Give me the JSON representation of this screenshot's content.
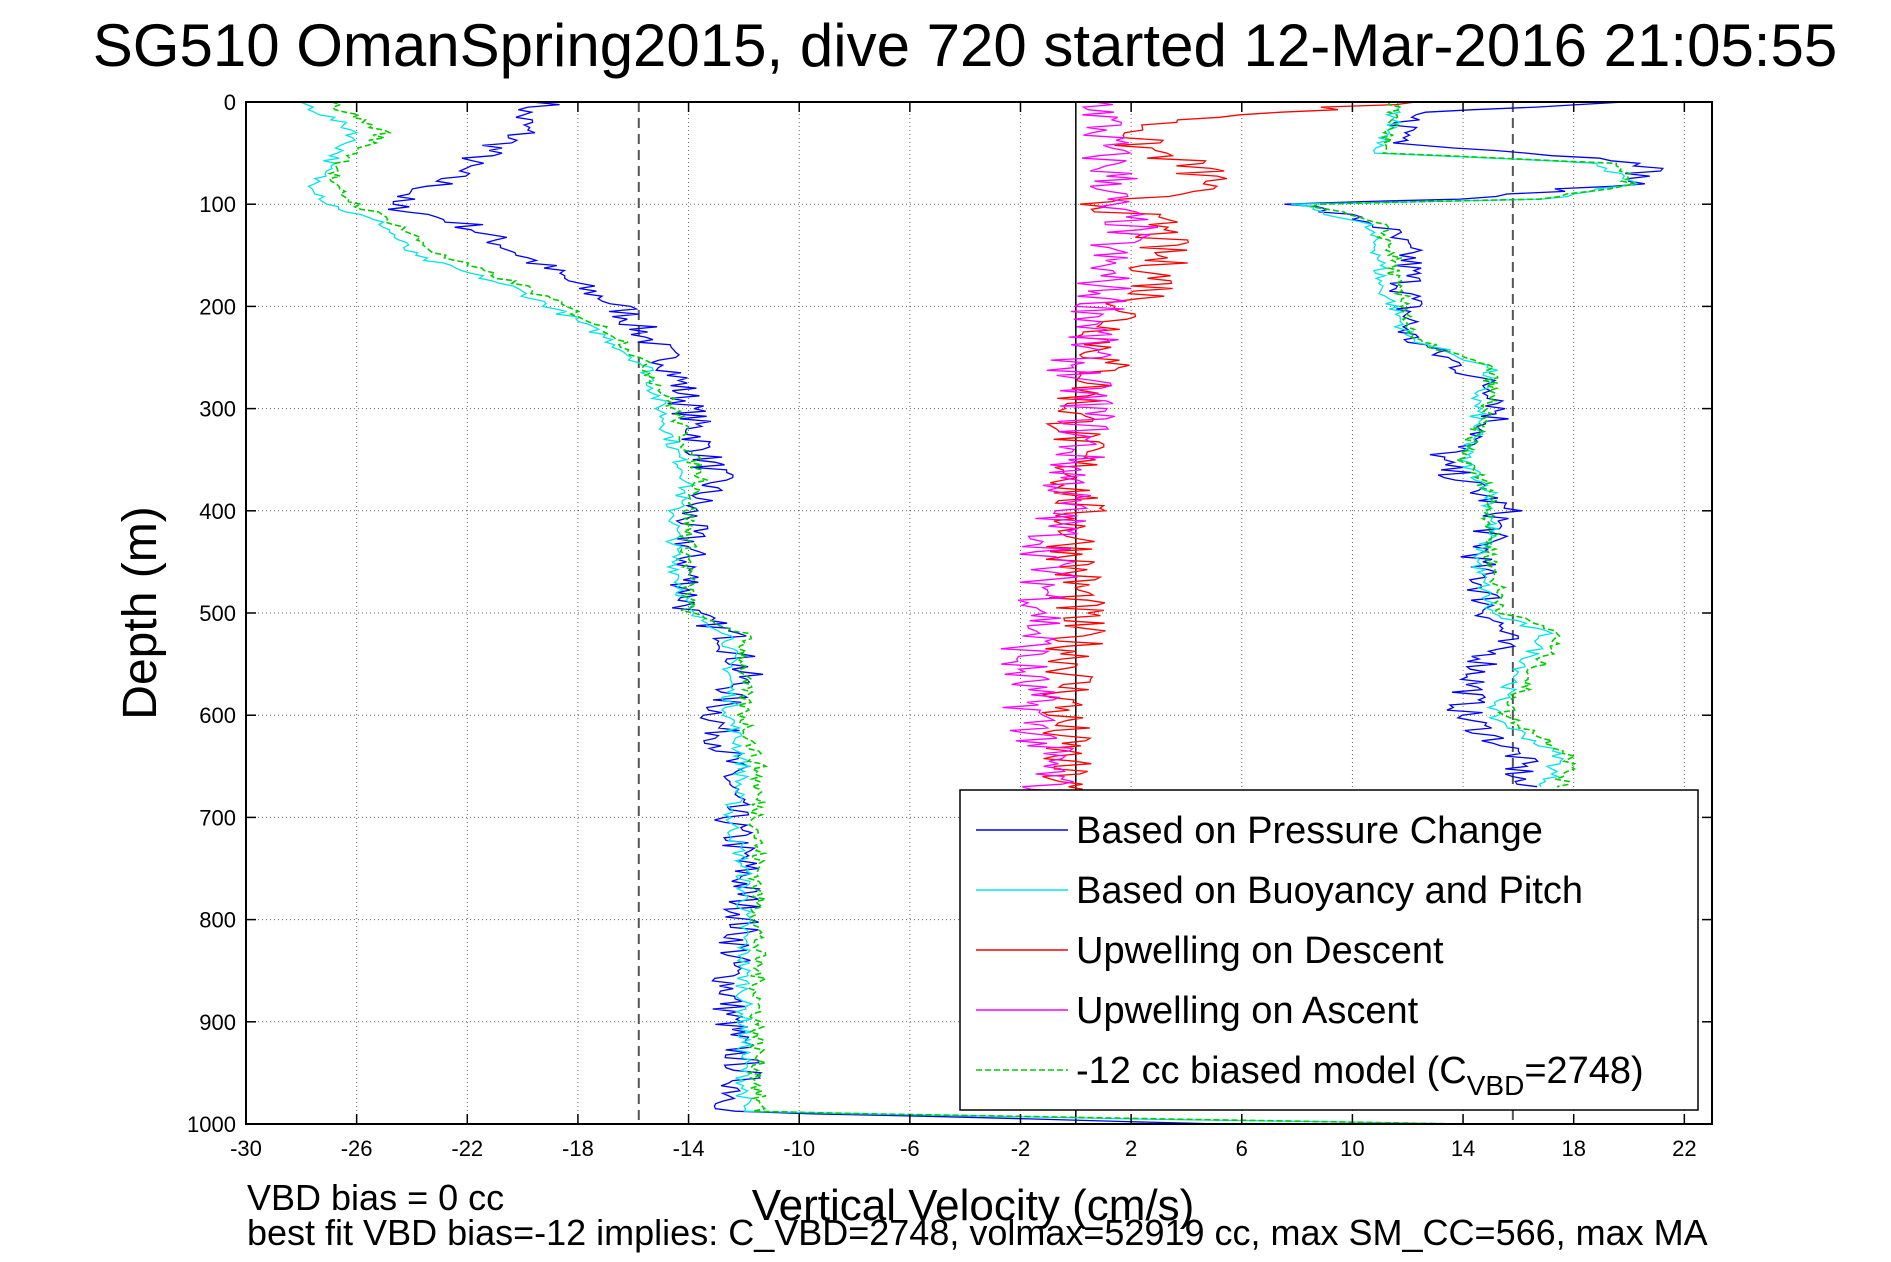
{
  "chart_data": {
    "type": "line",
    "title": "SG510 OmanSpring2015, dive 720 started 12-Mar-2016 21:05:55",
    "xlabel": "Vertical Velocity (cm/s)",
    "ylabel": "Depth (m)",
    "xlim": [
      -30,
      23
    ],
    "ylim": [
      1000,
      0
    ],
    "y_reversed": true,
    "x_ticks": [
      -30,
      -26,
      -22,
      -18,
      -14,
      -10,
      -6,
      -2,
      2,
      6,
      10,
      14,
      18,
      22
    ],
    "y_ticks": [
      0,
      100,
      200,
      300,
      400,
      500,
      600,
      700,
      800,
      900,
      1000
    ],
    "grid": true,
    "legend_position": "lower-right",
    "reference_lines": {
      "dashed_x": [
        -15.8,
        15.8
      ],
      "solid_x": [
        0
      ]
    },
    "notes": [
      "VBD bias = 0 cc",
      "best fit VBD bias=-12 implies: C_VBD=2748, volmax=52919 cc, max SM_CC=566, max MA"
    ],
    "legend": [
      {
        "label": "Based on Pressure Change"
      },
      {
        "label": "Based on Buoyancy and Pitch"
      },
      {
        "label": "Upwelling on Descent"
      },
      {
        "label": "Upwelling on Ascent"
      },
      {
        "label": "-12 cc biased model (C",
        "sub": "VBD",
        "suffix": "=2748)"
      }
    ],
    "series": [
      {
        "name": "Based on Pressure Change",
        "color": "#0000ff",
        "style": "solid",
        "descent": [
          [
            0,
            -19
          ],
          [
            10,
            -20
          ],
          [
            30,
            -20
          ],
          [
            60,
            -22
          ],
          [
            80,
            -23
          ],
          [
            100,
            -25
          ],
          [
            120,
            -22
          ],
          [
            150,
            -20
          ],
          [
            180,
            -18
          ],
          [
            200,
            -16.5
          ],
          [
            230,
            -15.5
          ],
          [
            260,
            -14.5
          ],
          [
            300,
            -14
          ],
          [
            340,
            -13.5
          ],
          [
            370,
            -13
          ],
          [
            400,
            -14
          ],
          [
            450,
            -14
          ],
          [
            500,
            -14
          ],
          [
            520,
            -12.5
          ],
          [
            560,
            -12
          ],
          [
            600,
            -13
          ],
          [
            650,
            -12.5
          ],
          [
            700,
            -12.5
          ],
          [
            750,
            -12
          ],
          [
            800,
            -12
          ],
          [
            850,
            -12.5
          ],
          [
            900,
            -12.5
          ],
          [
            950,
            -12
          ],
          [
            988,
            -12.5
          ],
          [
            995,
            -2
          ],
          [
            1000,
            5
          ]
        ],
        "ascent": [
          [
            0,
            20
          ],
          [
            10,
            12
          ],
          [
            40,
            12
          ],
          [
            60,
            21
          ],
          [
            80,
            20
          ],
          [
            95,
            14
          ],
          [
            100,
            8
          ],
          [
            120,
            11
          ],
          [
            150,
            12
          ],
          [
            180,
            12
          ],
          [
            200,
            12
          ],
          [
            230,
            12
          ],
          [
            260,
            14
          ],
          [
            290,
            15.5
          ],
          [
            320,
            15
          ],
          [
            350,
            13
          ],
          [
            380,
            14.5
          ],
          [
            400,
            15.5
          ],
          [
            420,
            15
          ],
          [
            450,
            14.5
          ],
          [
            500,
            15
          ],
          [
            520,
            15.5
          ],
          [
            560,
            14.5
          ],
          [
            600,
            14
          ],
          [
            640,
            16
          ],
          [
            670,
            16
          ]
        ]
      },
      {
        "name": "Based on Buoyancy and Pitch",
        "color": "#00e5e5",
        "style": "solid",
        "descent": [
          [
            0,
            -28
          ],
          [
            30,
            -26
          ],
          [
            60,
            -27
          ],
          [
            80,
            -27.5
          ],
          [
            100,
            -27
          ],
          [
            120,
            -25
          ],
          [
            150,
            -24
          ],
          [
            180,
            -20.5
          ],
          [
            200,
            -19
          ],
          [
            230,
            -17
          ],
          [
            260,
            -15.5
          ],
          [
            300,
            -15
          ],
          [
            340,
            -14.5
          ],
          [
            370,
            -14
          ],
          [
            400,
            -14.5
          ],
          [
            450,
            -14.5
          ],
          [
            500,
            -14
          ],
          [
            520,
            -12.5
          ],
          [
            560,
            -12.5
          ],
          [
            600,
            -12.5
          ],
          [
            650,
            -12
          ],
          [
            700,
            -12.5
          ],
          [
            750,
            -12
          ],
          [
            800,
            -12
          ],
          [
            850,
            -12
          ],
          [
            900,
            -12
          ],
          [
            950,
            -12
          ],
          [
            988,
            -12
          ],
          [
            995,
            2
          ],
          [
            1000,
            14
          ]
        ],
        "ascent": [
          [
            0,
            11.5
          ],
          [
            20,
            11.5
          ],
          [
            50,
            11
          ],
          [
            60,
            19
          ],
          [
            80,
            20
          ],
          [
            95,
            17
          ],
          [
            100,
            8
          ],
          [
            120,
            10.5
          ],
          [
            150,
            11
          ],
          [
            180,
            11
          ],
          [
            200,
            11.5
          ],
          [
            230,
            12
          ],
          [
            260,
            15
          ],
          [
            290,
            14.5
          ],
          [
            320,
            14.5
          ],
          [
            350,
            14
          ],
          [
            380,
            15
          ],
          [
            400,
            15
          ],
          [
            420,
            15
          ],
          [
            450,
            14.5
          ],
          [
            500,
            15
          ],
          [
            520,
            17
          ],
          [
            560,
            16
          ],
          [
            600,
            15
          ],
          [
            640,
            17.5
          ],
          [
            670,
            17
          ]
        ]
      },
      {
        "name": "Upwelling on Descent",
        "color": "#ff0000",
        "style": "solid",
        "profile": [
          [
            0,
            12
          ],
          [
            20,
            3
          ],
          [
            40,
            2
          ],
          [
            60,
            4
          ],
          [
            80,
            5
          ],
          [
            100,
            1
          ],
          [
            120,
            3
          ],
          [
            150,
            3
          ],
          [
            180,
            3
          ],
          [
            200,
            2
          ],
          [
            230,
            1
          ],
          [
            260,
            1
          ],
          [
            300,
            0
          ],
          [
            350,
            0
          ],
          [
            400,
            0
          ],
          [
            450,
            0
          ],
          [
            500,
            0
          ],
          [
            550,
            0
          ],
          [
            600,
            -0.5
          ],
          [
            650,
            -0.5
          ],
          [
            680,
            -0.5
          ]
        ]
      },
      {
        "name": "Upwelling on Ascent",
        "color": "#ff00ff",
        "style": "solid",
        "profile": [
          [
            0,
            1
          ],
          [
            20,
            1
          ],
          [
            50,
            1
          ],
          [
            80,
            1.5
          ],
          [
            100,
            1
          ],
          [
            120,
            2
          ],
          [
            150,
            1
          ],
          [
            180,
            1
          ],
          [
            200,
            1
          ],
          [
            230,
            0.5
          ],
          [
            260,
            0
          ],
          [
            300,
            0.5
          ],
          [
            350,
            0
          ],
          [
            400,
            -0.5
          ],
          [
            450,
            -1
          ],
          [
            500,
            -1
          ],
          [
            550,
            -2
          ],
          [
            600,
            -1.5
          ],
          [
            650,
            -1
          ],
          [
            680,
            -1
          ]
        ]
      },
      {
        "name": "-12 cc biased model (CVBD=2748)",
        "color": "#00cc00",
        "style": "dashed",
        "descent": [
          [
            0,
            -27
          ],
          [
            30,
            -25
          ],
          [
            60,
            -26.5
          ],
          [
            80,
            -27
          ],
          [
            100,
            -26
          ],
          [
            120,
            -24.5
          ],
          [
            150,
            -23
          ],
          [
            180,
            -20
          ],
          [
            200,
            -18.5
          ],
          [
            230,
            -16.5
          ],
          [
            260,
            -15.5
          ],
          [
            300,
            -14.5
          ],
          [
            340,
            -14
          ],
          [
            370,
            -13.5
          ],
          [
            400,
            -14
          ],
          [
            450,
            -14
          ],
          [
            500,
            -14
          ],
          [
            520,
            -12
          ],
          [
            560,
            -12
          ],
          [
            600,
            -12
          ],
          [
            650,
            -11.5
          ],
          [
            700,
            -11.5
          ],
          [
            750,
            -11.5
          ],
          [
            800,
            -11.5
          ],
          [
            850,
            -11.5
          ],
          [
            900,
            -11.5
          ],
          [
            950,
            -11.5
          ],
          [
            988,
            -11.5
          ],
          [
            995,
            3
          ],
          [
            1000,
            14
          ]
        ],
        "ascent": [
          [
            0,
            11.5
          ],
          [
            20,
            11.5
          ],
          [
            50,
            11
          ],
          [
            60,
            19.5
          ],
          [
            80,
            20
          ],
          [
            95,
            17
          ],
          [
            100,
            8.5
          ],
          [
            120,
            11
          ],
          [
            150,
            11.5
          ],
          [
            180,
            11.5
          ],
          [
            200,
            12
          ],
          [
            230,
            12
          ],
          [
            260,
            15
          ],
          [
            290,
            15
          ],
          [
            320,
            14.5
          ],
          [
            350,
            14
          ],
          [
            380,
            15
          ],
          [
            400,
            15
          ],
          [
            420,
            15
          ],
          [
            450,
            15
          ],
          [
            500,
            15.5
          ],
          [
            520,
            17.5
          ],
          [
            560,
            16.5
          ],
          [
            600,
            15.5
          ],
          [
            640,
            18
          ],
          [
            670,
            17.5
          ]
        ]
      }
    ]
  }
}
